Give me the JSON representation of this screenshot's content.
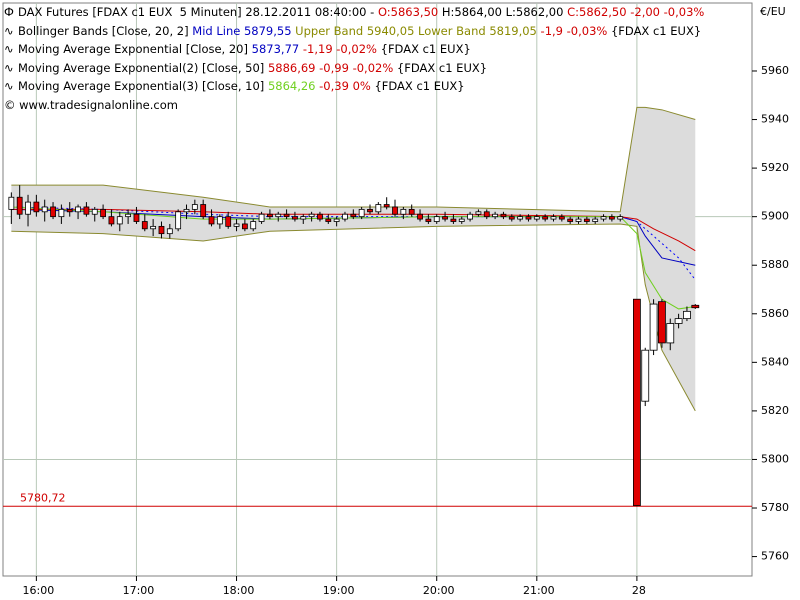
{
  "chart_data": {
    "type": "candlestick",
    "value_axis_label": "€/EU",
    "legend": [
      [
        {
          "text": "DAX Futures [FDAX c1 EUX  5 Minuten] 28.12.2011 08:40:00 - ",
          "color": "#000000"
        },
        {
          "text": "O:5863,50",
          "color": "#d00000"
        },
        {
          "text": " H:5864,00 L:5862,00 ",
          "color": "#000000"
        },
        {
          "text": "C:5862,50 -2,00 -0,03%",
          "color": "#d00000"
        }
      ],
      [
        {
          "text": "Bollinger Bands [Close, 20, 2] ",
          "color": "#000000"
        },
        {
          "text": "Mid Line 5879,55",
          "color": "#0000c0"
        },
        {
          "text": " Upper Band 5940,05 Lower Band 5819,05",
          "color": "#8a8a00"
        },
        {
          "text": " -1,9 -0,03%",
          "color": "#d00000"
        },
        {
          "text": " {FDAX c1 EUX}",
          "color": "#000000"
        }
      ],
      [
        {
          "text": "Moving Average Exponential [Close, 20] ",
          "color": "#000000"
        },
        {
          "text": "5873,77",
          "color": "#0000c0"
        },
        {
          "text": " -1,19 -0,02%",
          "color": "#d00000"
        },
        {
          "text": " {FDAX c1 EUX}",
          "color": "#000000"
        }
      ],
      [
        {
          "text": "Moving Average Exponential(2) [Close, 50] ",
          "color": "#000000"
        },
        {
          "text": "5886,69",
          "color": "#d00000"
        },
        {
          "text": " -0,99 -0,02%",
          "color": "#d00000"
        },
        {
          "text": " {FDAX c1 EUX}",
          "color": "#000000"
        }
      ],
      [
        {
          "text": "Moving Average Exponential(3) [Close, 10] ",
          "color": "#000000"
        },
        {
          "text": "5864,26",
          "color": "#70d020"
        },
        {
          "text": " -0,39 0%",
          "color": "#d00000"
        },
        {
          "text": " {FDAX c1 EUX}",
          "color": "#000000"
        }
      ],
      [
        {
          "text": "© www.tradesignalonline.com",
          "color": "#000000"
        }
      ]
    ],
    "xlim": [
      940,
      1389
    ],
    "xticks": [
      {
        "value": 960,
        "label": "16:00"
      },
      {
        "value": 1020,
        "label": "17:00"
      },
      {
        "value": 1080,
        "label": "18:00"
      },
      {
        "value": 1140,
        "label": "19:00"
      },
      {
        "value": 1200,
        "label": "20:00"
      },
      {
        "value": 1260,
        "label": "21:00"
      },
      {
        "value": 1320,
        "label": "28"
      }
    ],
    "ylim": [
      5752,
      5988
    ],
    "yticks": [
      5760,
      5780,
      5800,
      5820,
      5840,
      5860,
      5880,
      5900,
      5920,
      5940,
      5960
    ],
    "hgrid": [
      5800,
      5900
    ],
    "vgrid": true,
    "up_color": "#ffffff",
    "down_color": "#e00000",
    "x": [
      945,
      950,
      955,
      960,
      965,
      970,
      975,
      980,
      985,
      990,
      995,
      1000,
      1005,
      1010,
      1015,
      1020,
      1025,
      1030,
      1035,
      1040,
      1045,
      1050,
      1055,
      1060,
      1065,
      1070,
      1075,
      1080,
      1085,
      1090,
      1095,
      1100,
      1105,
      1110,
      1115,
      1120,
      1125,
      1130,
      1135,
      1140,
      1145,
      1150,
      1155,
      1160,
      1165,
      1170,
      1175,
      1180,
      1185,
      1190,
      1195,
      1200,
      1205,
      1210,
      1215,
      1220,
      1225,
      1230,
      1235,
      1240,
      1245,
      1250,
      1255,
      1260,
      1265,
      1270,
      1275,
      1280,
      1285,
      1290,
      1295,
      1300,
      1305,
      1310,
      1320,
      1325,
      1330,
      1335,
      1340,
      1345,
      1350,
      1355
    ],
    "open": [
      5903,
      5908,
      5901,
      5906,
      5902,
      5904,
      5900,
      5903,
      5902,
      5904,
      5901,
      5903,
      5900,
      5897,
      5900,
      5901,
      5898,
      5895,
      5896,
      5893,
      5895,
      5902,
      5903,
      5905,
      5900,
      5897,
      5900,
      5896,
      5897,
      5895,
      5898,
      5901,
      5900,
      5901,
      5900,
      5899,
      5900,
      5901,
      5899,
      5898,
      5899,
      5901,
      5900,
      5903,
      5902,
      5905,
      5904,
      5901,
      5903,
      5901,
      5899,
      5898,
      5900,
      5899,
      5898,
      5899,
      5901,
      5902,
      5900,
      5901,
      5900,
      5899,
      5900,
      5899,
      5900,
      5899,
      5900,
      5899,
      5898,
      5899,
      5898,
      5899,
      5900,
      5899,
      5866,
      5824,
      5845,
      5865,
      5848,
      5856,
      5858,
      5863.5
    ],
    "high": [
      5910,
      5913,
      5909,
      5909,
      5907,
      5906,
      5905,
      5906,
      5905,
      5906,
      5904,
      5905,
      5903,
      5902,
      5903,
      5904,
      5901,
      5899,
      5898,
      5897,
      5903,
      5905,
      5907,
      5907,
      5903,
      5901,
      5902,
      5899,
      5899,
      5899,
      5902,
      5903,
      5902,
      5903,
      5902,
      5901,
      5902,
      5902,
      5901,
      5900,
      5902,
      5903,
      5904,
      5905,
      5906,
      5908,
      5907,
      5904,
      5905,
      5903,
      5901,
      5901,
      5902,
      5901,
      5900,
      5902,
      5903,
      5903,
      5902,
      5902,
      5901,
      5901,
      5901,
      5901,
      5901,
      5901,
      5901,
      5900,
      5900,
      5900,
      5900,
      5901,
      5901,
      5901,
      5866,
      5846,
      5866,
      5866,
      5858,
      5860,
      5863,
      5864
    ],
    "low": [
      5897,
      5899,
      5896,
      5900,
      5898,
      5899,
      5897,
      5900,
      5899,
      5900,
      5898,
      5899,
      5896,
      5894,
      5897,
      5897,
      5894,
      5892,
      5891,
      5891,
      5894,
      5899,
      5901,
      5899,
      5896,
      5895,
      5895,
      5894,
      5894,
      5894,
      5897,
      5899,
      5898,
      5899,
      5898,
      5897,
      5898,
      5898,
      5897,
      5896,
      5898,
      5899,
      5899,
      5901,
      5901,
      5903,
      5900,
      5899,
      5900,
      5898,
      5897,
      5897,
      5898,
      5897,
      5897,
      5898,
      5900,
      5899,
      5899,
      5899,
      5898,
      5898,
      5898,
      5898,
      5898,
      5898,
      5898,
      5897,
      5897,
      5897,
      5897,
      5898,
      5898,
      5898,
      5780.72,
      5822,
      5843,
      5846,
      5845,
      5854,
      5857,
      5862
    ],
    "close": [
      5908,
      5901,
      5906,
      5902,
      5904,
      5900,
      5903,
      5902,
      5904,
      5901,
      5903,
      5900,
      5897,
      5900,
      5901,
      5898,
      5895,
      5896,
      5893,
      5895,
      5902,
      5903,
      5905,
      5900,
      5897,
      5900,
      5896,
      5897,
      5895,
      5898,
      5901,
      5900,
      5901,
      5900,
      5899,
      5900,
      5901,
      5899,
      5898,
      5899,
      5901,
      5900,
      5903,
      5902,
      5905,
      5904,
      5901,
      5903,
      5901,
      5899,
      5898,
      5900,
      5899,
      5898,
      5899,
      5901,
      5902,
      5900,
      5901,
      5900,
      5899,
      5900,
      5899,
      5900,
      5899,
      5900,
      5899,
      5898,
      5899,
      5898,
      5899,
      5900,
      5899,
      5900,
      5781,
      5845,
      5864,
      5848,
      5856,
      5858,
      5861,
      5862.5
    ],
    "bollinger": {
      "x": [
        945,
        1000,
        1060,
        1100,
        1200,
        1310,
        1320,
        1325,
        1335,
        1355
      ],
      "upper": [
        5913,
        5913,
        5908,
        5904,
        5904,
        5902,
        5945,
        5945,
        5944,
        5940
      ],
      "lower": [
        5894,
        5893,
        5890,
        5894,
        5896,
        5897,
        5896,
        5872,
        5845,
        5820
      ],
      "mid": [
        5903,
        5902,
        5900,
        5899,
        5900,
        5900,
        5898,
        5892,
        5883,
        5880
      ],
      "band_color": "#dcdcdc",
      "edge_color": "#8a8a30",
      "mid_color": "#0000c0"
    },
    "ema": [
      {
        "x": [
          945,
          1000,
          1060,
          1100,
          1200,
          1310,
          1320,
          1330,
          1345,
          1355
        ],
        "values": [
          5904,
          5903,
          5901,
          5900,
          5900,
          5900,
          5898,
          5892,
          5883,
          5874
        ],
        "color": "#0000ff",
        "dash": true
      },
      {
        "x": [
          945,
          1000,
          1060,
          1100,
          1200,
          1310,
          1320,
          1330,
          1345,
          1355
        ],
        "values": [
          5903,
          5903,
          5902,
          5901,
          5901,
          5900,
          5899,
          5895,
          5890,
          5886
        ],
        "color": "#d00000",
        "dash": false
      },
      {
        "x": [
          945,
          1000,
          1060,
          1100,
          1200,
          1310,
          1320,
          1325,
          1335,
          1345,
          1355
        ],
        "values": [
          5904,
          5902,
          5899,
          5899,
          5900,
          5900,
          5893,
          5877,
          5866,
          5862,
          5863
        ],
        "color": "#70d020",
        "dash": false
      }
    ],
    "hline": {
      "value": 5780.72,
      "label": "5780,72",
      "color": "#d00000"
    }
  }
}
